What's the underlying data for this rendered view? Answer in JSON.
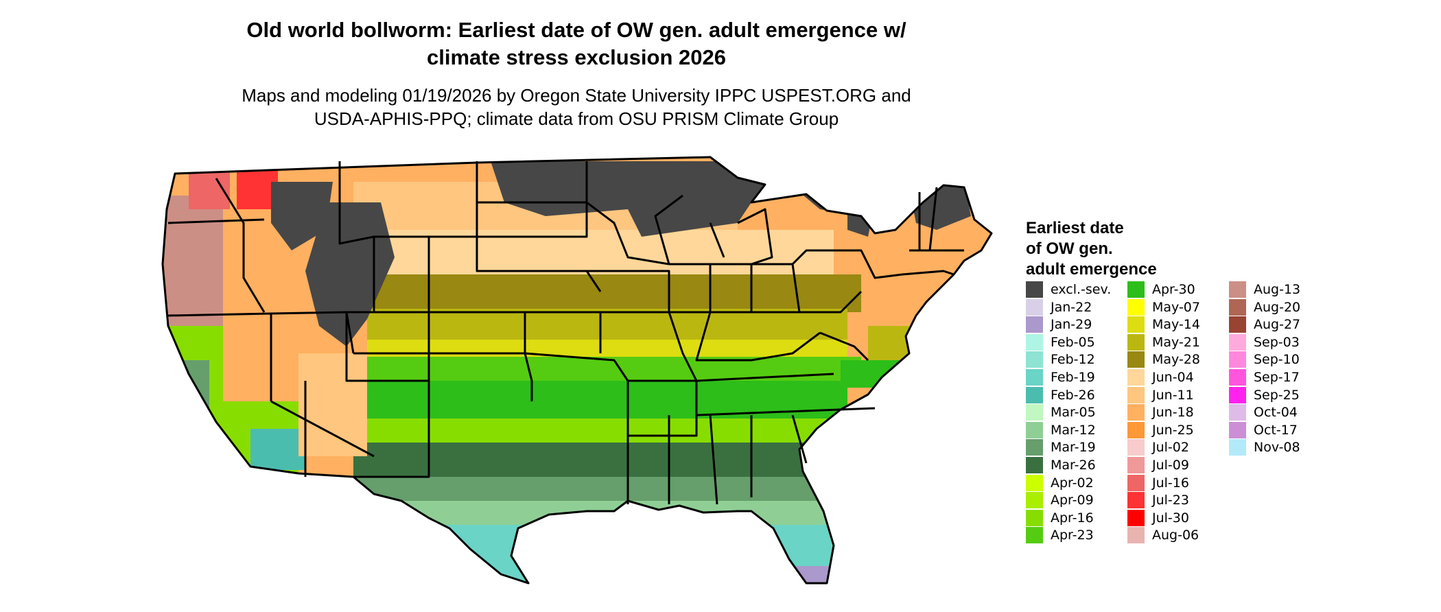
{
  "title": "Old world bollworm: Earliest date of OW gen. adult emergence w/\nclimate stress exclusion 2026",
  "subtitle": "Maps and modeling 01/19/2026 by Oregon State University IPPC USPEST.ORG and\nUSDA-APHIS-PPQ; climate data from OSU PRISM Climate Group",
  "legend": {
    "title": "Earliest date\nof OW gen.\nadult emergence",
    "items": [
      {
        "label": "excl.-sev.",
        "color": "#474747"
      },
      {
        "label": "Jan-22",
        "color": "#d9d0e8"
      },
      {
        "label": "Jan-29",
        "color": "#ab98cc"
      },
      {
        "label": "Feb-05",
        "color": "#aef5e5"
      },
      {
        "label": "Feb-12",
        "color": "#8ee3d2"
      },
      {
        "label": "Feb-19",
        "color": "#6ad4c6"
      },
      {
        "label": "Feb-26",
        "color": "#4bbdaf"
      },
      {
        "label": "Mar-05",
        "color": "#c1f7c1"
      },
      {
        "label": "Mar-12",
        "color": "#8fcf95"
      },
      {
        "label": "Mar-19",
        "color": "#669e6c"
      },
      {
        "label": "Mar-26",
        "color": "#3a7040"
      },
      {
        "label": "Apr-02",
        "color": "#ccff00"
      },
      {
        "label": "Apr-09",
        "color": "#aaee00"
      },
      {
        "label": "Apr-16",
        "color": "#88dd00"
      },
      {
        "label": "Apr-23",
        "color": "#55cc11"
      },
      {
        "label": "Apr-30",
        "color": "#2dbe19"
      },
      {
        "label": "May-07",
        "color": "#ffff00"
      },
      {
        "label": "May-14",
        "color": "#dddd11"
      },
      {
        "label": "May-21",
        "color": "#bbb711"
      },
      {
        "label": "May-28",
        "color": "#998811"
      },
      {
        "label": "Jun-04",
        "color": "#ffd79a"
      },
      {
        "label": "Jun-11",
        "color": "#ffc67f"
      },
      {
        "label": "Jun-18",
        "color": "#ffb060"
      },
      {
        "label": "Jun-25",
        "color": "#ff9836"
      },
      {
        "label": "Jul-02",
        "color": "#f7cccc"
      },
      {
        "label": "Jul-09",
        "color": "#f09999"
      },
      {
        "label": "Jul-16",
        "color": "#ee6666"
      },
      {
        "label": "Jul-23",
        "color": "#ff3333"
      },
      {
        "label": "Jul-30",
        "color": "#ff0000"
      },
      {
        "label": "Aug-06",
        "color": "#e8b4b0"
      },
      {
        "label": "Aug-13",
        "color": "#cc8f85"
      },
      {
        "label": "Aug-20",
        "color": "#b06655"
      },
      {
        "label": "Aug-27",
        "color": "#994433"
      },
      {
        "label": "Sep-03",
        "color": "#ffaadd"
      },
      {
        "label": "Sep-10",
        "color": "#ff88dd"
      },
      {
        "label": "Sep-17",
        "color": "#ff55dd"
      },
      {
        "label": "Sep-25",
        "color": "#ff22ee"
      },
      {
        "label": "Oct-04",
        "color": "#dfbbe8"
      },
      {
        "label": "Oct-17",
        "color": "#cc8fd5"
      },
      {
        "label": "Nov-08",
        "color": "#b3eafa"
      }
    ]
  }
}
